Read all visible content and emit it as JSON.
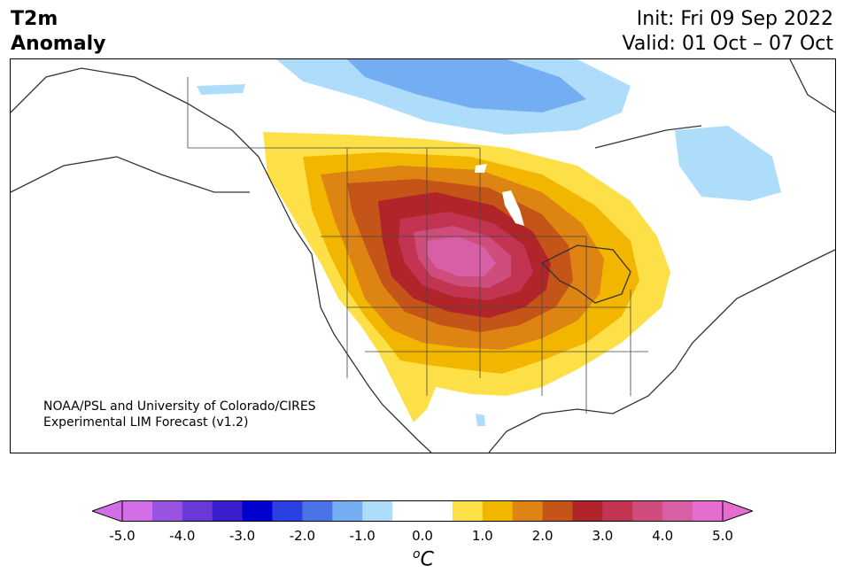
{
  "header": {
    "title_line1": "T2m",
    "title_line2": "Anomaly",
    "init": "Init: Fri 09 Sep 2022",
    "valid": "Valid: 01 Oct – 07 Oct"
  },
  "credit": {
    "line1": "NOAA/PSL and University of Colorado/CIRES",
    "line2": "Experimental LIM Forecast (v1.2)"
  },
  "colorbar": {
    "unit_main": "C",
    "unit_sup": "o",
    "ticks": [
      "-5.0",
      "-4.0",
      "-3.0",
      "-2.0",
      "-1.0",
      "0.0",
      "1.0",
      "2.0",
      "3.0",
      "4.0",
      "5.0"
    ],
    "colors": [
      "#d46ee6",
      "#9a52e0",
      "#6a3ad9",
      "#3a1fcf",
      "#0000cf",
      "#2a40e0",
      "#4a73e8",
      "#73aef2",
      "#aedcfb",
      "#ffffff",
      "#ffffff",
      "#fde047",
      "#f2b600",
      "#de8412",
      "#c45418",
      "#b1252a",
      "#c33452",
      "#cf4d7c",
      "#d85fa5",
      "#e46dcf"
    ],
    "extend_low_color": "#d46ee6",
    "extend_high_color": "#e46dcf"
  }
}
